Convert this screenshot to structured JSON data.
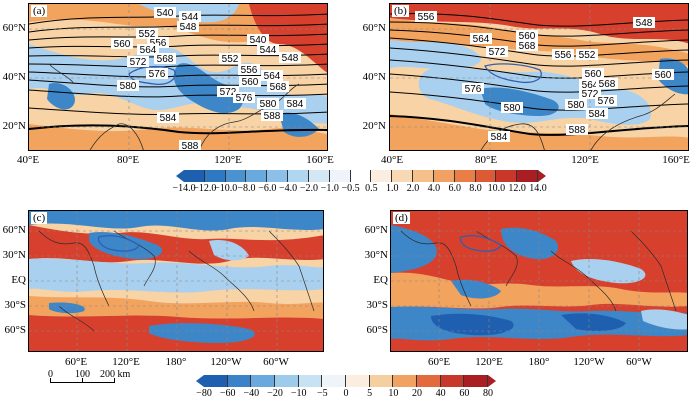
{
  "panels": {
    "a": {
      "label": "(a)",
      "ylabels": [
        "60°N",
        "40°N",
        "20°N"
      ],
      "xlabels": [
        "40°E",
        "80°E",
        "120°E",
        "160°E"
      ],
      "contours": [
        "540",
        "544",
        "548",
        "552",
        "556",
        "560",
        "564",
        "568",
        "572",
        "576",
        "580",
        "584",
        "588",
        "540",
        "544",
        "548",
        "552",
        "556",
        "560",
        "564",
        "568",
        "572",
        "576",
        "580",
        "584",
        "588"
      ]
    },
    "b": {
      "label": "(b)",
      "ylabels": [
        "60°N",
        "40°N",
        "20°N"
      ],
      "xlabels": [
        "40°E",
        "80°E",
        "120°E",
        "160°E"
      ],
      "contours": [
        "556",
        "560",
        "564",
        "568",
        "572",
        "548",
        "552",
        "556",
        "560",
        "564",
        "568",
        "572",
        "576",
        "580",
        "584",
        "588",
        "576",
        "580",
        "584",
        "560"
      ]
    },
    "c": {
      "label": "(c)",
      "ylabels": [
        "60°N",
        "30°N",
        "EQ",
        "30°S",
        "60°S"
      ],
      "xlabels": [
        "60°E",
        "120°E",
        "180°",
        "120°W",
        "60°W"
      ]
    },
    "d": {
      "label": "(d)",
      "ylabels": [
        "60°N",
        "30°N",
        "EQ",
        "30°S",
        "60°S"
      ],
      "xlabels": [
        "60°E",
        "120°E",
        "180°",
        "120°W",
        "60°W"
      ]
    }
  },
  "colorbar_top": {
    "labels": [
      "−14.0",
      "−12.0",
      "−10.0",
      "−8.0",
      "−6.0",
      "−4.0",
      "−2.0",
      "−1.0",
      "−0.5",
      "0.5",
      "1.0",
      "2.0",
      "4.0",
      "6.0",
      "8.0",
      "10.0",
      "12.0",
      "14.0"
    ],
    "colors": [
      "#1f5fb0",
      "#2f78c4",
      "#4a92d2",
      "#6aa9de",
      "#8cc0e8",
      "#b1d6f0",
      "#d3e7f5",
      "#eef4fa",
      "#ffffff",
      "#fbeee0",
      "#f8d9b4",
      "#f5c089",
      "#f1a263",
      "#e97e46",
      "#dd5a35",
      "#c8382a",
      "#a81e22"
    ]
  },
  "colorbar_bottom": {
    "labels": [
      "−80",
      "−60",
      "−40",
      "−20",
      "−10",
      "−5",
      "0",
      "5",
      "10",
      "20",
      "40",
      "60",
      "80"
    ],
    "colors": [
      "#1f5fb0",
      "#3c82c8",
      "#6aa9de",
      "#9ccbec",
      "#c7e2f3",
      "#eef4fa",
      "#fbeee0",
      "#f6cfa0",
      "#f1a263",
      "#e26a3d",
      "#c8382a",
      "#a81e22"
    ]
  },
  "scale_bar": {
    "labels": [
      "0",
      "100",
      "200 km"
    ]
  },
  "colors": {
    "red": "#d8402e",
    "orange": "#f2a35e",
    "lightorange": "#f8d3a5",
    "blue": "#3d86c8",
    "lightblue": "#a9d0ee",
    "white": "#ffffff",
    "contour": "#000000",
    "land": "#2c2c2c"
  }
}
